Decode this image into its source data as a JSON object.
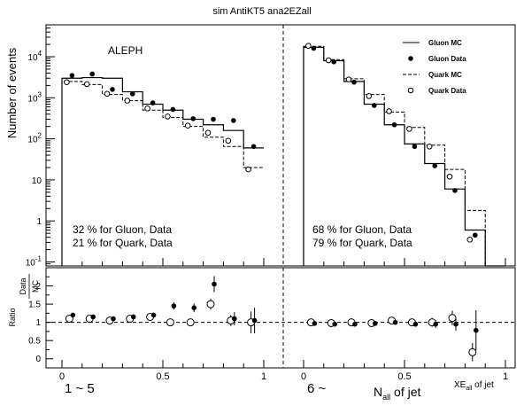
{
  "chart_data": {
    "type": "step-histogram-with-ratio",
    "title": "sim AntiKT5 ana2EZall",
    "experiment_label": "ALEPH",
    "ylabel_top": "Number of events",
    "ylabel_bottom_prefix": "Ratio",
    "ylabel_bottom_num": "Data",
    "ylabel_bottom_den": "MC",
    "xlabel_main": "N",
    "xlabel_main_sub": "all",
    "xlabel_main_suffix": " of jet",
    "xlabel_right": "XE",
    "xlabel_right_sub": "all",
    "xlabel_right_suffix": " of jet",
    "group_labels": [
      "1 ~ 5",
      "6 ~"
    ],
    "x_ticks": [
      "0",
      "0.5",
      "1"
    ],
    "x_range": [
      0,
      1
    ],
    "y_scale_top": "log",
    "y_range_top": [
      0.08,
      60000
    ],
    "y_ticks_top": [
      {
        "v": 0.1,
        "label": "10",
        "exp": "-1"
      },
      {
        "v": 1,
        "label": "1",
        "exp": ""
      },
      {
        "v": 10,
        "label": "10",
        "exp": ""
      },
      {
        "v": 100,
        "label": "10",
        "exp": "2"
      },
      {
        "v": 1000,
        "label": "10",
        "exp": "3"
      },
      {
        "v": 10000,
        "label": "10",
        "exp": "4"
      }
    ],
    "y_range_bottom": [
      -0.25,
      2.5
    ],
    "y_ticks_bottom": [
      "0",
      "0.5",
      "1",
      "1.5",
      "2"
    ],
    "legend": [
      {
        "label": "Gluon MC",
        "style": "solid-line"
      },
      {
        "label": "Gluon Data",
        "style": "filled-circle"
      },
      {
        "label": "Quark MC",
        "style": "dashed-line"
      },
      {
        "label": "Quark Data",
        "style": "open-circle"
      }
    ],
    "legend_position": "top-right",
    "panels": [
      {
        "group": "1 ~ 5",
        "bin_edges": [
          0,
          0.1,
          0.2,
          0.3,
          0.4,
          0.5,
          0.6,
          0.7,
          0.8,
          0.9,
          1.0
        ],
        "gluon_mc": [
          3000,
          3100,
          3000,
          1400,
          700,
          500,
          300,
          220,
          160,
          60
        ],
        "quark_mc": [
          2500,
          2100,
          1200,
          850,
          500,
          330,
          200,
          110,
          65,
          20
        ],
        "gluon_data": [
          3500,
          3800,
          1600,
          1250,
          750,
          520,
          310,
          300,
          280,
          65
        ],
        "quark_data": [
          2400,
          2150,
          1250,
          850,
          550,
          350,
          210,
          140,
          90,
          18
        ],
        "summary_gluon": "32 % for Gluon, Data",
        "summary_quark": "21 % for Quark, Data",
        "ratio_gluon": [
          1.2,
          1.15,
          1.1,
          1.15,
          1.2,
          1.45,
          1.4,
          2.05,
          1.1,
          1.05
        ],
        "ratio_gluon_err": [
          0.05,
          0.05,
          0.05,
          0.05,
          0.06,
          0.1,
          0.12,
          0.22,
          0.18,
          0.35
        ],
        "ratio_quark": [
          1.1,
          1.1,
          1.05,
          1.1,
          1.15,
          1.0,
          1.0,
          1.5,
          1.05,
          1.0
        ],
        "ratio_quark_err": [
          0.04,
          0.04,
          0.04,
          0.05,
          0.05,
          0.06,
          0.08,
          0.15,
          0.15,
          0.3
        ]
      },
      {
        "group": "6 ~",
        "bin_edges": [
          0,
          0.1,
          0.2,
          0.3,
          0.4,
          0.5,
          0.6,
          0.7,
          0.8,
          0.9,
          1.0
        ],
        "gluon_mc": [
          17000,
          8000,
          2500,
          700,
          220,
          75,
          25,
          6,
          0.6,
          0
        ],
        "quark_mc": [
          18000,
          8500,
          2900,
          1200,
          450,
          190,
          70,
          18,
          1.8,
          0
        ],
        "gluon_data": [
          16000,
          7500,
          2400,
          650,
          220,
          65,
          22,
          5.5,
          0.45,
          null
        ],
        "quark_data": [
          18500,
          8200,
          2800,
          1100,
          470,
          175,
          65,
          12,
          0.35,
          null
        ],
        "summary_gluon": "68 % for Gluon, Data",
        "summary_quark": "79 % for Quark, Data",
        "ratio_gluon": [
          0.97,
          0.95,
          0.95,
          0.97,
          1.0,
          0.95,
          0.95,
          0.95,
          0.78,
          null
        ],
        "ratio_gluon_err": [
          0.03,
          0.03,
          0.03,
          0.04,
          0.05,
          0.07,
          0.1,
          0.18,
          0.55,
          null
        ],
        "ratio_quark": [
          1.0,
          0.98,
          1.0,
          0.98,
          1.05,
          1.0,
          1.0,
          1.12,
          0.18,
          null
        ],
        "ratio_quark_err": [
          0.03,
          0.03,
          0.03,
          0.04,
          0.05,
          0.08,
          0.12,
          0.2,
          0.25,
          null
        ]
      }
    ]
  }
}
